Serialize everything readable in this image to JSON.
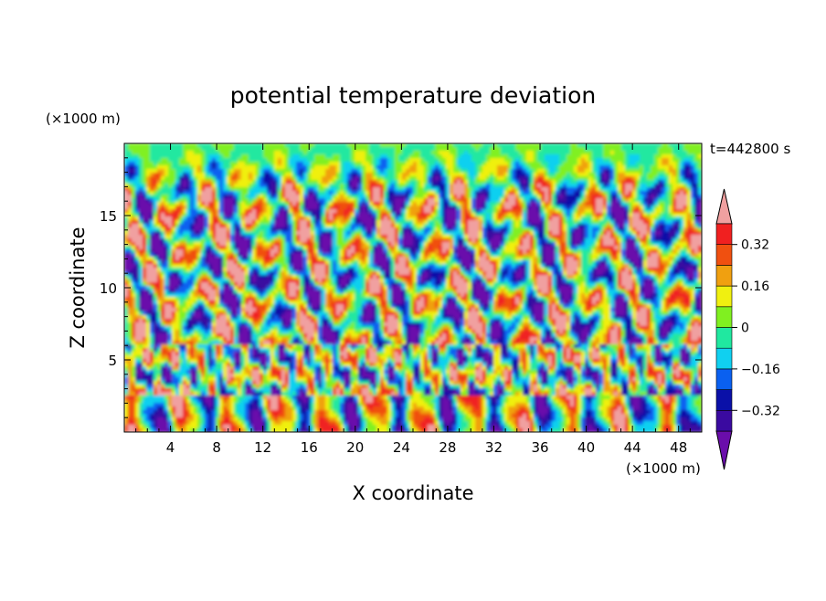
{
  "chart_data": {
    "type": "heatmap",
    "title": "potential temperature deviation",
    "xlabel": "X coordinate",
    "ylabel": "Z coordinate",
    "x_unit": "(×1000 m)",
    "y_unit": "(×1000 m)",
    "time_label": "t=442800 s",
    "xlim": [
      0,
      50
    ],
    "ylim": [
      0,
      20
    ],
    "x_ticks": [
      4,
      8,
      12,
      16,
      20,
      24,
      28,
      32,
      36,
      40,
      44,
      48
    ],
    "x_tick_labels": [
      "4",
      "8",
      "12",
      "16",
      "20",
      "24",
      "28",
      "32",
      "36",
      "40",
      "44",
      "48"
    ],
    "y_ticks": [
      5,
      10,
      15
    ],
    "y_tick_labels": [
      "5",
      "10",
      "15"
    ],
    "colorbar": {
      "levels": [
        -0.4,
        -0.32,
        -0.24,
        -0.16,
        -0.08,
        0,
        0.08,
        0.16,
        0.24,
        0.32,
        0.4
      ],
      "labels": [
        {
          "value": 0.32,
          "text": "0.32"
        },
        {
          "value": 0.16,
          "text": "0.16"
        },
        {
          "value": 0,
          "text": "0"
        },
        {
          "value": -0.16,
          "text": "−0.16"
        },
        {
          "value": -0.32,
          "text": "−0.32"
        }
      ],
      "colors": [
        "#6a0dab",
        "#3a0aa0",
        "#0a10a8",
        "#0a60f0",
        "#10d0f0",
        "#20e8a0",
        "#80f020",
        "#f0f010",
        "#f0a010",
        "#f05010",
        "#f02020",
        "#f0a0a0"
      ]
    }
  }
}
